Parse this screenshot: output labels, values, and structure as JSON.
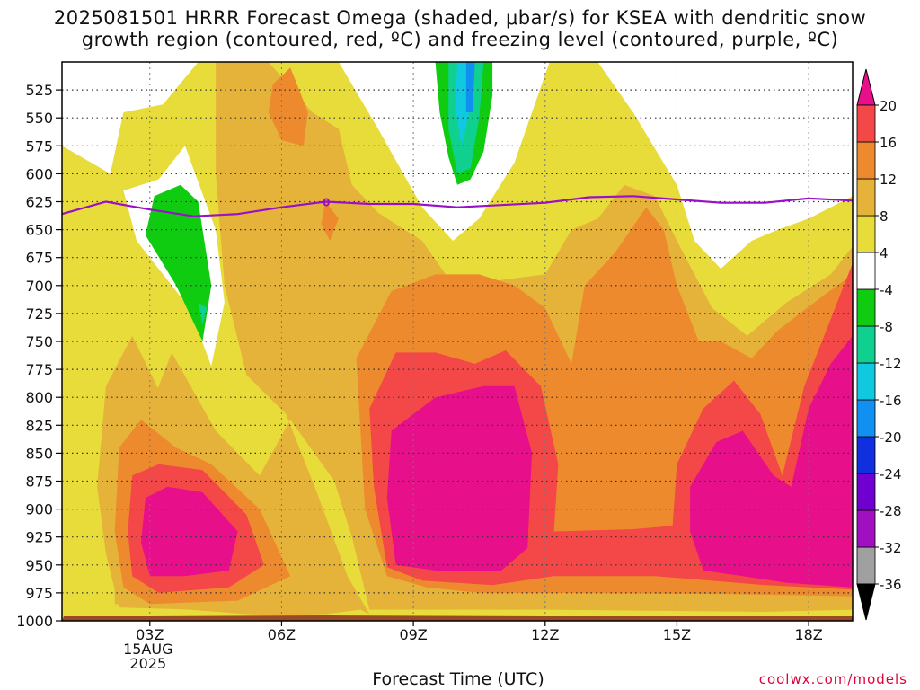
{
  "title": {
    "line1": "2025081501 HRRR Forecast Omega (shaded, μbar/s) for KSEA with dendritic snow",
    "line2": "growth region (contoured, red, ºC) and freezing level (contoured, purple, ºC)"
  },
  "credit": "coolwx.com/models",
  "chart_data": {
    "type": "heatmap",
    "title": "2025081501 HRRR Forecast Omega (shaded, μbar/s) for KSEA with dendritic snow growth region (contoured, red, ºC) and freezing level (contoured, purple, ºC)",
    "xlabel": "Forecast Time (UTC)",
    "ylabel": "",
    "x_ticks": [
      {
        "hour": 3,
        "label": "03Z",
        "sub": [
          "15AUG",
          "2025"
        ]
      },
      {
        "hour": 6,
        "label": "06Z"
      },
      {
        "hour": 9,
        "label": "09Z"
      },
      {
        "hour": 12,
        "label": "12Z"
      },
      {
        "hour": 15,
        "label": "15Z"
      },
      {
        "hour": 18,
        "label": "18Z"
      }
    ],
    "xlim": [
      1,
      19
    ],
    "y_ticks": [
      525,
      550,
      575,
      600,
      625,
      650,
      675,
      700,
      725,
      750,
      775,
      800,
      825,
      850,
      875,
      900,
      925,
      950,
      975,
      1000
    ],
    "ylim": [
      500,
      1000
    ],
    "colorbar": {
      "levels": [
        -36,
        -32,
        -28,
        -24,
        -20,
        -16,
        -12,
        -8,
        -4,
        4,
        8,
        12,
        16,
        20
      ],
      "colors": [
        "#a0a0a0",
        "#a010c0",
        "#7000d0",
        "#1030e0",
        "#1090f0",
        "#10c8e0",
        "#10d090",
        "#10cc10",
        "#ffffff",
        "#e8dc3a",
        "#e6b33a",
        "#ee8a2e",
        "#f44848",
        "#e8108a"
      ],
      "under_color": "#000000",
      "over_color": "#e8108a"
    },
    "freezing_level": {
      "color": "#9a10c8",
      "label": "0",
      "points": [
        [
          1,
          636
        ],
        [
          2,
          625
        ],
        [
          3,
          632
        ],
        [
          4,
          638
        ],
        [
          5,
          636
        ],
        [
          6,
          630
        ],
        [
          7,
          625
        ],
        [
          8,
          627
        ],
        [
          9,
          627
        ],
        [
          10,
          630
        ],
        [
          11,
          628
        ],
        [
          12,
          626
        ],
        [
          13,
          621
        ],
        [
          14,
          620
        ],
        [
          15,
          623
        ],
        [
          16,
          626
        ],
        [
          17,
          626
        ],
        [
          18,
          622
        ],
        [
          19,
          624
        ]
      ]
    },
    "terrain_color": "#9a4a25",
    "omega_regions": [
      {
        "level": 4,
        "points": [
          [
            1.5,
            500
          ],
          [
            5,
            500
          ],
          [
            7.3,
            500
          ],
          [
            8.2,
            560
          ],
          [
            9.2,
            630
          ],
          [
            9.9,
            660
          ],
          [
            10.5,
            640
          ],
          [
            11.3,
            590
          ],
          [
            11.7,
            545
          ],
          [
            12.1,
            500
          ],
          [
            13.2,
            500
          ],
          [
            14,
            545
          ],
          [
            15,
            610
          ],
          [
            15.4,
            660
          ],
          [
            16,
            685
          ],
          [
            16.7,
            660
          ],
          [
            17.3,
            650
          ],
          [
            18,
            640
          ],
          [
            19,
            620
          ],
          [
            19,
            1000
          ],
          [
            1,
            1000
          ],
          [
            1,
            575
          ],
          [
            2.1,
            600
          ],
          [
            2.4,
            545
          ],
          [
            3.3,
            538
          ],
          [
            4.1,
            500
          ]
        ]
      },
      {
        "level": 8,
        "points": [
          [
            4.5,
            500
          ],
          [
            5.7,
            500
          ],
          [
            6.7,
            545
          ],
          [
            7.3,
            560
          ],
          [
            7.6,
            610
          ],
          [
            8.2,
            635
          ],
          [
            9.2,
            660
          ],
          [
            10.0,
            705
          ],
          [
            11.0,
            695
          ],
          [
            12.0,
            690
          ],
          [
            12.6,
            650
          ],
          [
            13.2,
            640
          ],
          [
            13.8,
            610
          ],
          [
            14.5,
            620
          ],
          [
            15.0,
            660
          ],
          [
            15.8,
            720
          ],
          [
            16.6,
            745
          ],
          [
            17.5,
            715
          ],
          [
            18.5,
            690
          ],
          [
            19,
            665
          ],
          [
            19,
            990
          ],
          [
            17,
            992
          ],
          [
            12,
            990
          ],
          [
            10,
            990
          ],
          [
            8,
            990
          ],
          [
            7.6,
            925
          ],
          [
            7.2,
            875
          ],
          [
            6.2,
            820
          ],
          [
            5.5,
            870
          ],
          [
            4.5,
            830
          ],
          [
            3.5,
            760
          ],
          [
            3.1,
            800
          ],
          [
            2.6,
            875
          ],
          [
            2.2,
            950
          ],
          [
            2.2,
            985
          ],
          [
            5.2,
            994
          ],
          [
            6,
            995
          ],
          [
            7,
            994
          ],
          [
            7.8,
            990
          ],
          [
            8,
            994
          ],
          [
            7.5,
            960
          ],
          [
            6.8,
            885
          ],
          [
            6.1,
            815
          ],
          [
            5.2,
            780
          ],
          [
            4.7,
            700
          ],
          [
            4.5,
            600
          ]
        ]
      },
      {
        "level": 12,
        "points": [
          [
            7.7,
            765
          ],
          [
            8.5,
            705
          ],
          [
            9.5,
            690
          ],
          [
            10.5,
            690
          ],
          [
            11.3,
            700
          ],
          [
            12.0,
            720
          ],
          [
            12.6,
            770
          ],
          [
            12.9,
            700
          ],
          [
            13.6,
            670
          ],
          [
            14.3,
            630
          ],
          [
            14.7,
            650
          ],
          [
            15.0,
            700
          ],
          [
            15.5,
            750
          ],
          [
            16.0,
            750
          ],
          [
            16.7,
            765
          ],
          [
            17.3,
            740
          ],
          [
            18.3,
            710
          ],
          [
            19,
            690
          ],
          [
            19,
            978
          ],
          [
            16,
            976
          ],
          [
            12,
            975
          ],
          [
            10.5,
            975
          ],
          [
            9.3,
            970
          ],
          [
            8.4,
            960
          ],
          [
            7.9,
            900
          ]
        ]
      },
      {
        "level": 16,
        "points": [
          [
            8.0,
            810
          ],
          [
            8.6,
            760
          ],
          [
            9.5,
            760
          ],
          [
            10.4,
            770
          ],
          [
            11.1,
            758
          ],
          [
            11.9,
            790
          ],
          [
            12.3,
            860
          ],
          [
            12.2,
            920
          ],
          [
            14.0,
            918
          ],
          [
            14.9,
            915
          ],
          [
            15.0,
            860
          ],
          [
            15.6,
            810
          ],
          [
            16.3,
            785
          ],
          [
            16.9,
            815
          ],
          [
            17.4,
            870
          ],
          [
            17.9,
            790
          ],
          [
            18.4,
            740
          ],
          [
            19,
            680
          ],
          [
            19,
            972
          ],
          [
            17,
            968
          ],
          [
            14.5,
            960
          ],
          [
            12.2,
            960
          ],
          [
            10.8,
            968
          ],
          [
            9.2,
            964
          ],
          [
            8.4,
            952
          ],
          [
            8.1,
            880
          ]
        ]
      },
      {
        "level": 20,
        "points": [
          [
            8.5,
            830
          ],
          [
            9.5,
            800
          ],
          [
            10.6,
            790
          ],
          [
            11.3,
            790
          ],
          [
            11.7,
            850
          ],
          [
            11.6,
            935
          ],
          [
            11.0,
            955
          ],
          [
            9.5,
            955
          ],
          [
            8.6,
            950
          ],
          [
            8.4,
            890
          ]
        ]
      },
      {
        "level": 20,
        "points": [
          [
            15.3,
            880
          ],
          [
            15.9,
            840
          ],
          [
            16.5,
            830
          ],
          [
            17.2,
            870
          ],
          [
            17.6,
            880
          ],
          [
            18.0,
            810
          ],
          [
            18.5,
            770
          ],
          [
            19,
            745
          ],
          [
            19,
            970
          ],
          [
            17.5,
            966
          ],
          [
            16.5,
            960
          ],
          [
            15.6,
            955
          ],
          [
            15.3,
            920
          ]
        ]
      },
      {
        "level": 8,
        "points": [
          [
            2.0,
            790
          ],
          [
            2.6,
            745
          ],
          [
            3.6,
            825
          ],
          [
            4.3,
            845
          ],
          [
            5.2,
            880
          ],
          [
            6.3,
            935
          ],
          [
            6.8,
            960
          ],
          [
            6.5,
            985
          ],
          [
            4.0,
            990
          ],
          [
            2.3,
            988
          ],
          [
            2.0,
            940
          ],
          [
            1.8,
            880
          ]
        ]
      },
      {
        "level": 12,
        "points": [
          [
            2.3,
            845
          ],
          [
            2.8,
            820
          ],
          [
            3.6,
            845
          ],
          [
            4.4,
            860
          ],
          [
            5.5,
            900
          ],
          [
            6.2,
            960
          ],
          [
            5.0,
            982
          ],
          [
            3.0,
            985
          ],
          [
            2.4,
            970
          ],
          [
            2.2,
            920
          ]
        ]
      },
      {
        "level": 16,
        "points": [
          [
            2.6,
            870
          ],
          [
            3.2,
            860
          ],
          [
            4.2,
            865
          ],
          [
            5.2,
            905
          ],
          [
            5.6,
            950
          ],
          [
            4.8,
            970
          ],
          [
            3.2,
            975
          ],
          [
            2.6,
            960
          ],
          [
            2.5,
            920
          ]
        ]
      },
      {
        "level": 20,
        "points": [
          [
            2.9,
            890
          ],
          [
            3.4,
            880
          ],
          [
            4.2,
            885
          ],
          [
            5.0,
            920
          ],
          [
            4.8,
            955
          ],
          [
            3.8,
            960
          ],
          [
            3.0,
            960
          ],
          [
            2.8,
            930
          ]
        ]
      },
      {
        "level": 12,
        "points": [
          [
            5.8,
            520
          ],
          [
            6.2,
            505
          ],
          [
            6.6,
            545
          ],
          [
            6.5,
            575
          ],
          [
            6.0,
            570
          ],
          [
            5.7,
            545
          ]
        ]
      },
      {
        "level": 12,
        "points": [
          [
            7.0,
            625
          ],
          [
            7.3,
            640
          ],
          [
            7.1,
            660
          ],
          [
            6.9,
            645
          ]
        ]
      },
      {
        "level": -4,
        "points": [
          [
            3.8,
            575
          ],
          [
            4.5,
            650
          ],
          [
            4.7,
            715
          ],
          [
            4.4,
            772
          ],
          [
            3.9,
            720
          ],
          [
            2.7,
            660
          ],
          [
            2.4,
            615
          ],
          [
            3.2,
            605
          ]
        ]
      },
      {
        "level": -8,
        "points": [
          [
            3.7,
            610
          ],
          [
            4.1,
            625
          ],
          [
            4.4,
            700
          ],
          [
            4.2,
            750
          ],
          [
            3.6,
            700
          ],
          [
            2.9,
            655
          ],
          [
            3.1,
            620
          ]
        ]
      },
      {
        "level": -12,
        "points": [
          [
            4.1,
            715
          ],
          [
            4.3,
            720
          ],
          [
            4.2,
            735
          ]
        ]
      },
      {
        "level": -4,
        "points": [
          [
            9.1,
            500
          ],
          [
            11.1,
            500
          ],
          [
            11.3,
            535
          ],
          [
            11.0,
            600
          ],
          [
            10.5,
            630
          ],
          [
            10.0,
            650
          ],
          [
            9.7,
            625
          ],
          [
            9.2,
            580
          ],
          [
            9.0,
            530
          ]
        ]
      },
      {
        "level": -8,
        "points": [
          [
            9.5,
            500
          ],
          [
            10.8,
            500
          ],
          [
            10.8,
            530
          ],
          [
            10.6,
            580
          ],
          [
            10.3,
            605
          ],
          [
            10.0,
            610
          ],
          [
            9.8,
            585
          ],
          [
            9.6,
            545
          ]
        ]
      },
      {
        "level": -12,
        "points": [
          [
            9.8,
            500
          ],
          [
            10.6,
            500
          ],
          [
            10.5,
            550
          ],
          [
            10.3,
            595
          ],
          [
            10.0,
            600
          ],
          [
            9.8,
            560
          ]
        ]
      },
      {
        "level": -16,
        "points": [
          [
            10.0,
            500
          ],
          [
            10.3,
            500
          ],
          [
            10.3,
            540
          ],
          [
            10.1,
            575
          ],
          [
            9.95,
            540
          ]
        ]
      },
      {
        "level": -20,
        "points": [
          [
            10.2,
            500
          ],
          [
            10.4,
            500
          ],
          [
            10.35,
            545
          ],
          [
            10.2,
            545
          ]
        ]
      }
    ]
  }
}
